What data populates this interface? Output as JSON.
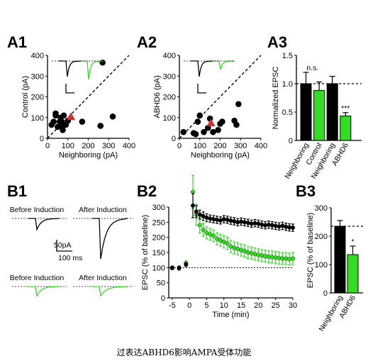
{
  "caption": "过表达ABHD6影响AMPA受体功能",
  "panels": {
    "A1": "A1",
    "A2": "A2",
    "A3": "A3",
    "B1": "B1",
    "B2": "B2",
    "B3": "B3"
  },
  "colors": {
    "control": "#000000",
    "abhd6": "#33dd22",
    "highlight": "#cc3333"
  },
  "chart_data": [
    {
      "id": "A1",
      "type": "scatter",
      "xlabel": "Neighboring  (pA)",
      "ylabel": "Control (pA)",
      "xlim": [
        0,
        400
      ],
      "ylim": [
        0,
        400
      ],
      "xticks": [
        0,
        100,
        200,
        300,
        400
      ],
      "yticks": [
        0,
        100,
        200,
        300,
        400
      ],
      "unity_line": true,
      "points": [
        [
          20,
          65
        ],
        [
          30,
          80
        ],
        [
          40,
          110
        ],
        [
          40,
          120
        ],
        [
          50,
          55
        ],
        [
          60,
          60
        ],
        [
          60,
          80
        ],
        [
          65,
          100
        ],
        [
          70,
          80
        ],
        [
          75,
          40
        ],
        [
          75,
          60
        ],
        [
          80,
          110
        ],
        [
          90,
          65
        ],
        [
          100,
          85
        ],
        [
          170,
          80
        ],
        [
          260,
          60
        ],
        [
          270,
          365
        ],
        [
          320,
          105
        ]
      ],
      "mean": [
        115,
        105
      ]
    },
    {
      "id": "A2",
      "type": "scatter",
      "xlabel": "Neighboring  (pA)",
      "ylabel": "ABHD6 (pA)",
      "xlim": [
        0,
        400
      ],
      "ylim": [
        0,
        400
      ],
      "xticks": [
        0,
        100,
        200,
        300,
        400
      ],
      "yticks": [
        0,
        100,
        200,
        300,
        400
      ],
      "unity_line": true,
      "points": [
        [
          20,
          30
        ],
        [
          70,
          25
        ],
        [
          80,
          20
        ],
        [
          90,
          80
        ],
        [
          100,
          110
        ],
        [
          120,
          30
        ],
        [
          140,
          50
        ],
        [
          150,
          95
        ],
        [
          165,
          30
        ],
        [
          190,
          40
        ],
        [
          200,
          70
        ],
        [
          210,
          80
        ],
        [
          270,
          85
        ],
        [
          280,
          65
        ],
        [
          290,
          165
        ]
      ],
      "mean": [
        155,
        75
      ]
    },
    {
      "id": "A3",
      "type": "bar",
      "ylabel": "Normalized EPSC",
      "ylim": [
        0,
        1.5
      ],
      "yticks": [
        0,
        0.5,
        1.0,
        1.5
      ],
      "reference": 1.0,
      "categories": [
        "Neighboring",
        "Control",
        "Neighboring",
        "ABHD6"
      ],
      "values": [
        1.0,
        0.88,
        1.0,
        0.43
      ],
      "errors": [
        0.2,
        0.15,
        0.13,
        0.06
      ],
      "bar_colors": [
        "#000000",
        "#33dd22",
        "#000000",
        "#33dd22"
      ],
      "annotations": [
        {
          "text": "n.s.",
          "pair": [
            0,
            1
          ]
        },
        {
          "text": "***",
          "bar": 3
        }
      ]
    },
    {
      "id": "B1",
      "type": "traces",
      "labels": [
        "Before Induction",
        "After Induction"
      ],
      "scalebar": {
        "amplitude": "50pA",
        "time": "100 ms"
      },
      "rows": [
        {
          "color": "#000000",
          "before_peak_pA": -30,
          "after_peak_pA": -110
        },
        {
          "color": "#33dd22",
          "before_peak_pA": -25,
          "after_peak_pA": -25
        }
      ]
    },
    {
      "id": "B2",
      "type": "line",
      "xlabel": "Time (min)",
      "ylabel": "EPSC (% of baseline)",
      "xlim": [
        -6,
        30
      ],
      "ylim": [
        0,
        300
      ],
      "xticks": [
        -5,
        0,
        5,
        10,
        15,
        20,
        25,
        30
      ],
      "yticks": [
        0,
        50,
        100,
        150,
        200,
        250,
        300
      ],
      "reference": 100,
      "series": [
        {
          "color": "#000000",
          "x": [
            -5,
            -3,
            -1,
            1,
            2,
            3,
            4,
            5,
            6,
            7,
            8,
            9,
            10,
            11,
            12,
            13,
            14,
            15,
            16,
            17,
            18,
            19,
            20,
            21,
            22,
            23,
            24,
            25,
            26,
            27,
            28,
            29,
            30
          ],
          "y": [
            100,
            98,
            110,
            305,
            285,
            275,
            270,
            265,
            262,
            260,
            258,
            256,
            260,
            258,
            255,
            253,
            250,
            252,
            250,
            248,
            245,
            247,
            245,
            242,
            240,
            242,
            240,
            238,
            236,
            238,
            235,
            233,
            232
          ],
          "err": [
            5,
            6,
            6,
            40,
            20,
            15,
            14,
            13,
            12,
            12,
            12,
            12,
            12,
            12,
            12,
            12,
            12,
            12,
            12,
            12,
            12,
            12,
            12,
            12,
            12,
            12,
            12,
            12,
            12,
            12,
            12,
            12,
            12
          ]
        },
        {
          "color": "#33dd22",
          "x": [
            -5,
            -3,
            -1,
            1,
            2,
            3,
            4,
            5,
            6,
            7,
            8,
            9,
            10,
            11,
            12,
            13,
            14,
            15,
            16,
            17,
            18,
            19,
            20,
            21,
            22,
            23,
            24,
            25,
            26,
            27,
            28,
            29,
            30
          ],
          "y": [
            98,
            100,
            115,
            350,
            275,
            240,
            225,
            215,
            210,
            205,
            195,
            190,
            185,
            180,
            170,
            165,
            162,
            158,
            155,
            150,
            148,
            145,
            142,
            140,
            138,
            136,
            135,
            133,
            132,
            130,
            130,
            128,
            130
          ],
          "err": [
            5,
            6,
            8,
            55,
            35,
            25,
            22,
            20,
            20,
            20,
            20,
            20,
            20,
            20,
            20,
            20,
            20,
            20,
            20,
            20,
            20,
            20,
            20,
            20,
            20,
            20,
            20,
            20,
            20,
            20,
            20,
            20,
            20
          ]
        }
      ]
    },
    {
      "id": "B3",
      "type": "bar",
      "ylabel": "EPSC (% of baseline)",
      "ylim": [
        0,
        300
      ],
      "yticks": [
        0,
        100,
        200,
        300
      ],
      "reference": 235,
      "categories": [
        "Neighboring",
        "ABHD6"
      ],
      "values": [
        235,
        135
      ],
      "errors": [
        20,
        30
      ],
      "bar_colors": [
        "#000000",
        "#33dd22"
      ],
      "annotations": [
        {
          "text": "*",
          "bar": 1
        }
      ]
    }
  ]
}
